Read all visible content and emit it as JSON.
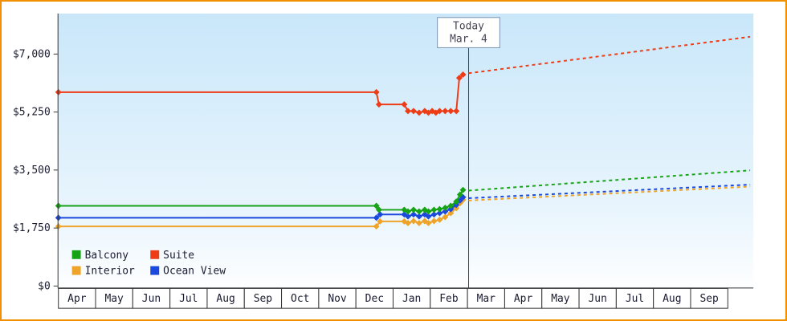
{
  "frame": {
    "border_color": "#f18f00"
  },
  "chart_data": {
    "type": "line",
    "y_axis": {
      "tick_labels": [
        "$0",
        "$1,750",
        "$3,500",
        "$5,250",
        "$7,000"
      ],
      "tick_values": [
        0,
        1750,
        3500,
        5250,
        7000
      ],
      "ylim": [
        0,
        8200
      ]
    },
    "x_axis": {
      "month_labels": [
        "Apr",
        "May",
        "Jun",
        "Jul",
        "Aug",
        "Sep",
        "Oct",
        "Nov",
        "Dec",
        "Jan",
        "Feb",
        "Mar",
        "Apr",
        "May",
        "Jun",
        "Jul",
        "Aug",
        "Sep"
      ]
    },
    "today_marker": {
      "line1": "Today",
      "line2": "Mar. 4",
      "month_position": 11.03
    },
    "legend": [
      {
        "label": "Balcony",
        "color": "#16a316"
      },
      {
        "label": "Suite",
        "color": "#ee3c17"
      },
      {
        "label": "Interior",
        "color": "#eea428"
      },
      {
        "label": "Ocean View",
        "color": "#1c49dd"
      }
    ],
    "series": [
      {
        "name": "Interior",
        "color": "#eea428",
        "history": [
          [
            0,
            1800
          ],
          [
            8.55,
            1800
          ],
          [
            8.65,
            1950
          ],
          [
            9.3,
            1950
          ],
          [
            9.4,
            1900
          ],
          [
            9.55,
            1960
          ],
          [
            9.7,
            1900
          ],
          [
            9.85,
            1960
          ],
          [
            9.95,
            1900
          ],
          [
            10.1,
            1960
          ],
          [
            10.25,
            2000
          ],
          [
            10.4,
            2080
          ],
          [
            10.55,
            2200
          ],
          [
            10.7,
            2350
          ],
          [
            10.8,
            2500
          ],
          [
            10.88,
            2600
          ]
        ],
        "forecast": [
          [
            11.03,
            2580
          ],
          [
            18.6,
            3000
          ]
        ]
      },
      {
        "name": "Ocean View",
        "color": "#1c49dd",
        "history": [
          [
            0,
            2060
          ],
          [
            8.55,
            2060
          ],
          [
            8.65,
            2160
          ],
          [
            9.3,
            2160
          ],
          [
            9.4,
            2100
          ],
          [
            9.55,
            2160
          ],
          [
            9.7,
            2100
          ],
          [
            9.85,
            2160
          ],
          [
            9.95,
            2100
          ],
          [
            10.1,
            2160
          ],
          [
            10.25,
            2200
          ],
          [
            10.4,
            2250
          ],
          [
            10.55,
            2320
          ],
          [
            10.7,
            2450
          ],
          [
            10.8,
            2580
          ],
          [
            10.88,
            2680
          ]
        ],
        "forecast": [
          [
            11.03,
            2650
          ],
          [
            18.6,
            3060
          ]
        ]
      },
      {
        "name": "Balcony",
        "color": "#16a316",
        "history": [
          [
            0,
            2420
          ],
          [
            8.55,
            2420
          ],
          [
            8.62,
            2300
          ],
          [
            9.3,
            2300
          ],
          [
            9.4,
            2250
          ],
          [
            9.55,
            2300
          ],
          [
            9.7,
            2250
          ],
          [
            9.85,
            2300
          ],
          [
            9.95,
            2250
          ],
          [
            10.1,
            2300
          ],
          [
            10.25,
            2320
          ],
          [
            10.4,
            2360
          ],
          [
            10.55,
            2420
          ],
          [
            10.7,
            2550
          ],
          [
            10.8,
            2760
          ],
          [
            10.88,
            2900
          ]
        ],
        "forecast": [
          [
            11.03,
            2880
          ],
          [
            18.6,
            3490
          ]
        ]
      },
      {
        "name": "Suite",
        "color": "#ee3c17",
        "history": [
          [
            0,
            5850
          ],
          [
            8.55,
            5850
          ],
          [
            8.62,
            5480
          ],
          [
            9.3,
            5480
          ],
          [
            9.4,
            5280
          ],
          [
            9.55,
            5280
          ],
          [
            9.7,
            5230
          ],
          [
            9.85,
            5280
          ],
          [
            9.95,
            5230
          ],
          [
            10.05,
            5280
          ],
          [
            10.15,
            5230
          ],
          [
            10.25,
            5280
          ],
          [
            10.4,
            5280
          ],
          [
            10.55,
            5280
          ],
          [
            10.7,
            5280
          ],
          [
            10.78,
            6280
          ],
          [
            10.88,
            6380
          ]
        ],
        "forecast": [
          [
            11.03,
            6420
          ],
          [
            18.6,
            7520
          ]
        ]
      }
    ]
  }
}
